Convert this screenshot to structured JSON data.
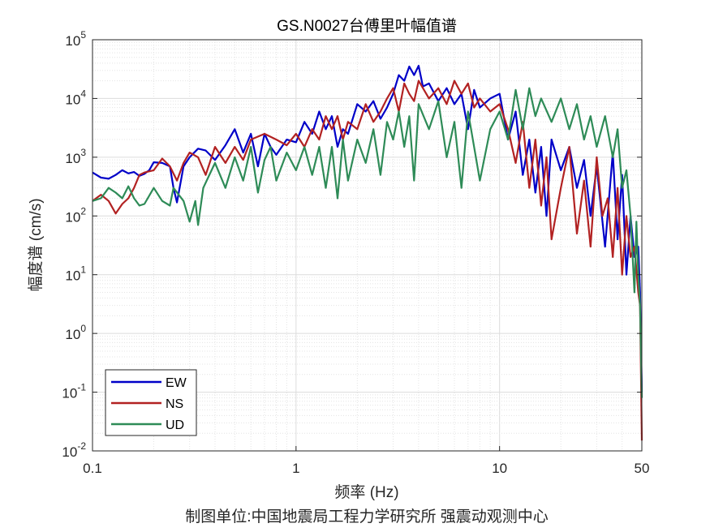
{
  "chart_data": {
    "type": "line",
    "title": "GS.N0027台傅里叶幅值谱",
    "xlabel": "频率 (Hz)",
    "ylabel": "幅度谱 (cm/s)",
    "credit": "制图单位:中国地震局工程力学研究所 强震动观测中心",
    "xscale": "log",
    "yscale": "log",
    "xlim": [
      0.1,
      50
    ],
    "ylim": [
      0.01,
      100000
    ],
    "xticks": [
      {
        "v": 0.1,
        "label": "0.1"
      },
      {
        "v": 1,
        "label": "1"
      },
      {
        "v": 10,
        "label": "10"
      },
      {
        "v": 50,
        "label": "50"
      }
    ],
    "yticks": [
      {
        "v": 0.01,
        "base": "10",
        "exp": "-2"
      },
      {
        "v": 0.1,
        "base": "10",
        "exp": "-1"
      },
      {
        "v": 1,
        "base": "10",
        "exp": "0"
      },
      {
        "v": 10,
        "base": "10",
        "exp": "1"
      },
      {
        "v": 100,
        "base": "10",
        "exp": "2"
      },
      {
        "v": 1000,
        "base": "10",
        "exp": "3"
      },
      {
        "v": 10000,
        "base": "10",
        "exp": "4"
      },
      {
        "v": 100000,
        "base": "10",
        "exp": "5"
      }
    ],
    "grid": true,
    "legend_position": "bottom-left",
    "series": [
      {
        "name": "EW",
        "color": "#0000c8",
        "x": [
          0.1,
          0.11,
          0.12,
          0.13,
          0.14,
          0.15,
          0.16,
          0.17,
          0.18,
          0.19,
          0.2,
          0.22,
          0.24,
          0.25,
          0.26,
          0.28,
          0.3,
          0.33,
          0.36,
          0.4,
          0.45,
          0.5,
          0.55,
          0.6,
          0.65,
          0.7,
          0.75,
          0.8,
          0.9,
          1.0,
          1.1,
          1.2,
          1.3,
          1.4,
          1.5,
          1.6,
          1.7,
          1.8,
          2.0,
          2.2,
          2.4,
          2.6,
          2.8,
          3.0,
          3.2,
          3.4,
          3.6,
          3.8,
          4.0,
          4.2,
          4.5,
          5,
          5.5,
          6,
          6.5,
          7,
          7.5,
          8,
          9,
          10,
          11,
          12,
          13,
          14,
          15,
          16,
          17,
          18,
          20,
          22,
          24,
          26,
          28,
          30,
          33,
          36,
          38,
          40,
          42,
          44,
          46,
          48,
          49,
          50
        ],
        "y": [
          550,
          450,
          430,
          500,
          600,
          530,
          560,
          480,
          520,
          600,
          820,
          800,
          700,
          300,
          170,
          700,
          1000,
          1400,
          1300,
          900,
          1600,
          3000,
          1200,
          2500,
          700,
          2500,
          1500,
          1100,
          2000,
          1800,
          4000,
          2500,
          6000,
          3000,
          5000,
          1500,
          3000,
          2500,
          8000,
          6000,
          9000,
          4500,
          7000,
          12000,
          25000,
          20000,
          35000,
          25000,
          36000,
          16000,
          18000,
          9000,
          15000,
          8000,
          12000,
          3000,
          14000,
          7000,
          10000,
          12000,
          2000,
          6000,
          500,
          2000,
          250,
          1500,
          100,
          2000,
          600,
          1500,
          300,
          900,
          100,
          700,
          30,
          1200,
          40,
          500,
          10,
          100,
          20,
          30,
          5,
          0.1
        ]
      },
      {
        "name": "NS",
        "color": "#b22222",
        "x": [
          0.1,
          0.11,
          0.12,
          0.13,
          0.14,
          0.15,
          0.16,
          0.17,
          0.18,
          0.2,
          0.22,
          0.24,
          0.26,
          0.28,
          0.3,
          0.33,
          0.36,
          0.4,
          0.45,
          0.5,
          0.55,
          0.6,
          0.7,
          0.8,
          0.9,
          1.0,
          1.1,
          1.2,
          1.3,
          1.4,
          1.5,
          1.6,
          1.7,
          1.8,
          2.0,
          2.2,
          2.4,
          2.6,
          2.8,
          3.0,
          3.2,
          3.4,
          3.6,
          3.8,
          4.0,
          4.5,
          5,
          5.5,
          6,
          6.5,
          7,
          7.5,
          8,
          9,
          10,
          11,
          12,
          13,
          14,
          15,
          16,
          17,
          18,
          20,
          22,
          24,
          26,
          28,
          30,
          32,
          34,
          36,
          38,
          40,
          42,
          44,
          46,
          48,
          49,
          50
        ],
        "y": [
          180,
          230,
          180,
          110,
          160,
          200,
          300,
          500,
          550,
          600,
          950,
          700,
          400,
          800,
          1200,
          1000,
          500,
          1500,
          800,
          1500,
          900,
          2000,
          2500,
          2000,
          1600,
          2500,
          1500,
          3000,
          2000,
          5000,
          3000,
          5000,
          2000,
          4000,
          3000,
          8000,
          4000,
          6000,
          10000,
          15000,
          6000,
          18000,
          12000,
          9000,
          20000,
          10000,
          15000,
          8000,
          20000,
          12000,
          18000,
          7000,
          10000,
          6000,
          8000,
          3000,
          800,
          4000,
          300,
          2000,
          150,
          1000,
          40,
          300,
          1500,
          50,
          400,
          30,
          1000,
          100,
          200,
          20,
          300,
          10,
          100,
          20,
          30,
          5,
          3,
          0.015
        ]
      },
      {
        "name": "UD",
        "color": "#2e8b57",
        "x": [
          0.1,
          0.11,
          0.12,
          0.13,
          0.14,
          0.15,
          0.16,
          0.17,
          0.18,
          0.2,
          0.22,
          0.24,
          0.25,
          0.28,
          0.3,
          0.32,
          0.33,
          0.35,
          0.4,
          0.45,
          0.5,
          0.55,
          0.6,
          0.65,
          0.7,
          0.75,
          0.8,
          0.9,
          1.0,
          1.1,
          1.2,
          1.3,
          1.4,
          1.5,
          1.6,
          1.7,
          1.8,
          2.0,
          2.2,
          2.4,
          2.6,
          2.8,
          3.0,
          3.2,
          3.4,
          3.6,
          3.8,
          4.0,
          4.5,
          5,
          5.5,
          6,
          6.5,
          7,
          8,
          9,
          10,
          11,
          12,
          13,
          14,
          15,
          16,
          18,
          20,
          22,
          24,
          26,
          28,
          30,
          33,
          36,
          38,
          40,
          42,
          44,
          46,
          47,
          48,
          49,
          50
        ],
        "y": [
          180,
          200,
          300,
          250,
          200,
          320,
          200,
          150,
          160,
          300,
          180,
          150,
          300,
          180,
          80,
          180,
          70,
          300,
          800,
          300,
          1000,
          400,
          1500,
          250,
          900,
          1500,
          400,
          1200,
          600,
          1500,
          500,
          1500,
          300,
          1500,
          200,
          2000,
          400,
          2000,
          800,
          3000,
          500,
          4000,
          2000,
          6000,
          1500,
          5000,
          400,
          8000,
          3000,
          9000,
          1000,
          4000,
          300,
          6000,
          400,
          3000,
          6000,
          2000,
          14000,
          3000,
          15000,
          5000,
          10000,
          4000,
          10000,
          3000,
          8000,
          2000,
          5000,
          1500,
          5000,
          1000,
          3000,
          300,
          600,
          100,
          5,
          80,
          10,
          3,
          0.08
        ]
      }
    ]
  }
}
